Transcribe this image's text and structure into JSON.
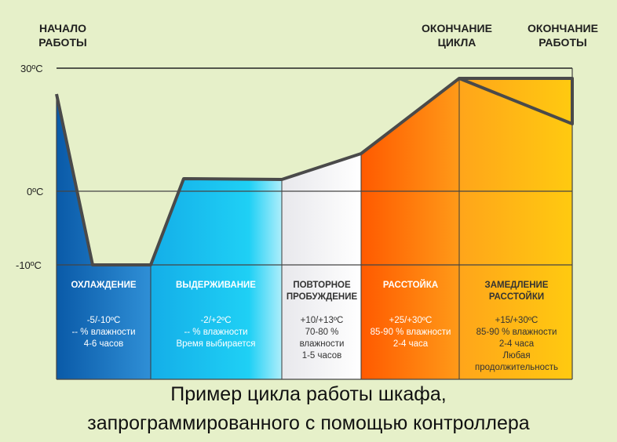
{
  "top_labels": {
    "start": [
      "НАЧАЛО",
      "РАБОТЫ"
    ],
    "cycle_end": [
      "ОКОНЧАНИЕ",
      "ЦИКЛА"
    ],
    "work_end": [
      "ОКОНЧАНИЕ",
      "РАБОТЫ"
    ]
  },
  "axis": {
    "t30": "30ºC",
    "t0": "0ºC",
    "tm10": "-10ºC"
  },
  "phases": [
    {
      "name": [
        "ОХЛАЖДЕНИЕ"
      ],
      "desc": [
        "-5/-10ºC",
        "-- % влажности",
        "4-6 часов"
      ],
      "text_color": "#ffffff"
    },
    {
      "name": [
        "ВЫДЕРЖИВАНИЕ"
      ],
      "desc": [
        "-2/+2ºC",
        "-- % влажности",
        "Время выбирается"
      ],
      "text_color": "#ffffff"
    },
    {
      "name": [
        "ПОВТОРНОЕ",
        "ПРОБУЖДЕНИЕ"
      ],
      "desc": [
        "+10/+13ºC",
        "70-80 %",
        "влажности",
        "1-5 часов"
      ],
      "text_color": "#333333"
    },
    {
      "name": [
        "РАССТОЙКА"
      ],
      "desc": [
        "+25/+30ºC",
        "85-90 % влажности",
        "2-4 часа"
      ],
      "text_color": "#ffffff"
    },
    {
      "name": [
        "ЗАМЕДЛЕНИЕ",
        "РАССТОЙКИ"
      ],
      "desc": [
        "+15/+30ºC",
        "85-90 % влажности",
        "2-4 часа",
        "Любая",
        "продолжительность"
      ],
      "text_color": "#333333"
    }
  ],
  "caption": [
    "Пример цикла работы шкафа,",
    "запрограммированного с помощью контроллера"
  ],
  "colors": {
    "background": "#e6f0c9",
    "line": "#4a4a4a",
    "cold": "#0a5aa8",
    "cool": "#1ab0ec",
    "neutral": "#ececec",
    "warm": "#ff6a00",
    "hot": "#ffc000"
  }
}
